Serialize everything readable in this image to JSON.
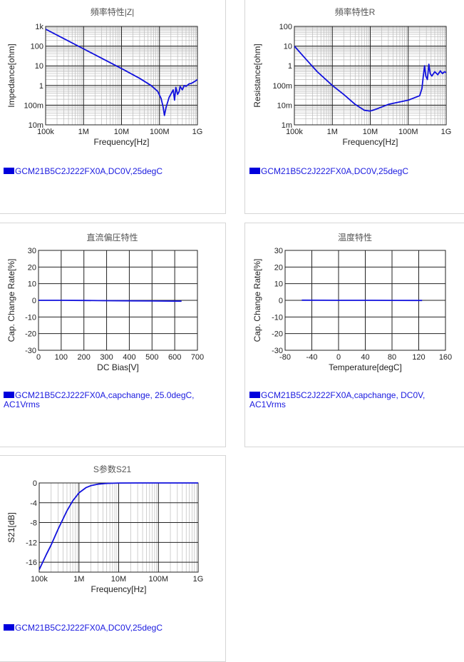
{
  "colors": {
    "series": "#1111dd",
    "grid_major": "#222222",
    "grid_minor": "#bbbbbb",
    "legend_text": "#1a1adf"
  },
  "panels": [
    {
      "title": "頻率特性|Z|",
      "legend": "GCM21B5C2J222FX0A,DC0V,25degC"
    },
    {
      "title": "頻率特性R",
      "legend": "GCM21B5C2J222FX0A,DC0V,25degC"
    },
    {
      "title": "直流偏圧特性",
      "legend": "GCM21B5C2J222FX0A,capchange, 25.0degC, AC1Vrms"
    },
    {
      "title": "温度特性",
      "legend": "GCM21B5C2J222FX0A,capchange, DC0V, AC1Vrms"
    },
    {
      "title": "S参数S21",
      "legend": "GCM21B5C2J222FX0A,DC0V,25degC"
    }
  ],
  "chart_data": [
    {
      "type": "line",
      "title": "頻率特性|Z|",
      "xlabel": "Frequency[Hz]",
      "ylabel": "Impedance[ohm]",
      "xscale": "log",
      "yscale": "log",
      "xlim": [
        100000,
        1000000000
      ],
      "ylim": [
        0.01,
        1000
      ],
      "xticks": [
        {
          "v": 100000,
          "label": "100k"
        },
        {
          "v": 1000000,
          "label": "1M"
        },
        {
          "v": 10000000,
          "label": "10M"
        },
        {
          "v": 100000000,
          "label": "100M"
        },
        {
          "v": 1000000000,
          "label": "1G"
        }
      ],
      "yticks": [
        {
          "v": 0.01,
          "label": "10m"
        },
        {
          "v": 0.1,
          "label": "100m"
        },
        {
          "v": 1,
          "label": "1"
        },
        {
          "v": 10,
          "label": "10"
        },
        {
          "v": 100,
          "label": "100"
        },
        {
          "v": 1000,
          "label": "1k"
        }
      ],
      "grid": true,
      "series": [
        {
          "name": "GCM21B5C2J222FX0A,DC0V,25degC",
          "x": [
            100000,
            300000,
            1000000,
            3000000,
            10000000,
            30000000,
            60000000,
            90000000,
            110000000,
            125000000,
            135000000,
            150000000,
            180000000,
            230000000,
            250000000,
            270000000,
            300000000,
            330000000,
            350000000,
            400000000,
            450000000,
            500000000,
            600000000,
            700000000,
            850000000,
            1000000000
          ],
          "y": [
            720,
            240,
            72,
            24,
            7.2,
            2.3,
            1.0,
            0.5,
            0.22,
            0.08,
            0.03,
            0.08,
            0.25,
            0.6,
            0.18,
            0.8,
            0.35,
            0.5,
            0.9,
            0.6,
            1.0,
            0.9,
            1.2,
            1.3,
            1.6,
            2.0
          ]
        }
      ]
    },
    {
      "type": "line",
      "title": "頻率特性R",
      "xlabel": "Frequency[Hz]",
      "ylabel": "Resistance[ohm]",
      "xscale": "log",
      "yscale": "log",
      "xlim": [
        100000,
        1000000000
      ],
      "ylim": [
        0.001,
        100
      ],
      "xticks": [
        {
          "v": 100000,
          "label": "100k"
        },
        {
          "v": 1000000,
          "label": "1M"
        },
        {
          "v": 10000000,
          "label": "10M"
        },
        {
          "v": 100000000,
          "label": "100M"
        },
        {
          "v": 1000000000,
          "label": "1G"
        }
      ],
      "yticks": [
        {
          "v": 0.001,
          "label": "1m"
        },
        {
          "v": 0.01,
          "label": "10m"
        },
        {
          "v": 0.1,
          "label": "100m"
        },
        {
          "v": 1,
          "label": "1"
        },
        {
          "v": 10,
          "label": "10"
        },
        {
          "v": 100,
          "label": "100"
        }
      ],
      "grid": true,
      "series": [
        {
          "name": "GCM21B5C2J222FX0A,DC0V,25degC",
          "x": [
            100000,
            200000,
            400000,
            1000000,
            2000000,
            4000000,
            7000000,
            10000000,
            15000000,
            30000000,
            100000000,
            200000000,
            230000000,
            250000000,
            270000000,
            290000000,
            320000000,
            350000000,
            380000000,
            420000000,
            500000000,
            600000000,
            700000000,
            800000000,
            900000000,
            1000000000
          ],
          "y": [
            10,
            2.2,
            0.5,
            0.1,
            0.035,
            0.011,
            0.0055,
            0.005,
            0.0065,
            0.011,
            0.018,
            0.03,
            0.07,
            0.3,
            1.0,
            0.3,
            0.2,
            1.2,
            0.4,
            0.3,
            0.5,
            0.35,
            0.55,
            0.4,
            0.5,
            0.45
          ]
        }
      ]
    },
    {
      "type": "line",
      "title": "直流偏圧特性",
      "xlabel": "DC Bias[V]",
      "ylabel": "Cap. Change Rate[%]",
      "xlim": [
        0,
        700
      ],
      "ylim": [
        -30,
        30
      ],
      "xticks": [
        {
          "v": 0,
          "label": "0"
        },
        {
          "v": 100,
          "label": "100"
        },
        {
          "v": 200,
          "label": "200"
        },
        {
          "v": 300,
          "label": "300"
        },
        {
          "v": 400,
          "label": "400"
        },
        {
          "v": 500,
          "label": "500"
        },
        {
          "v": 600,
          "label": "600"
        },
        {
          "v": 700,
          "label": "700"
        }
      ],
      "yticks": [
        {
          "v": -30,
          "label": "-30"
        },
        {
          "v": -20,
          "label": "-20"
        },
        {
          "v": -10,
          "label": "-10"
        },
        {
          "v": 0,
          "label": "0"
        },
        {
          "v": 10,
          "label": "10"
        },
        {
          "v": 20,
          "label": "20"
        },
        {
          "v": 30,
          "label": "30"
        }
      ],
      "grid": true,
      "series": [
        {
          "name": "GCM21B5C2J222FX0A,capchange, 25.0degC, AC1Vrms",
          "x": [
            0,
            100,
            200,
            300,
            400,
            500,
            630
          ],
          "y": [
            0,
            0,
            -0.1,
            -0.2,
            -0.3,
            -0.4,
            -0.5
          ]
        }
      ]
    },
    {
      "type": "line",
      "title": "温度特性",
      "xlabel": "Temperature[degC]",
      "ylabel": "Cap. Change Rate[%]",
      "xlim": [
        -80,
        160
      ],
      "ylim": [
        -30,
        30
      ],
      "xticks": [
        {
          "v": -80,
          "label": "-80"
        },
        {
          "v": -40,
          "label": "-40"
        },
        {
          "v": 0,
          "label": "0"
        },
        {
          "v": 40,
          "label": "40"
        },
        {
          "v": 80,
          "label": "80"
        },
        {
          "v": 120,
          "label": "120"
        },
        {
          "v": 160,
          "label": "160"
        }
      ],
      "yticks": [
        {
          "v": -30,
          "label": "-30"
        },
        {
          "v": -20,
          "label": "-20"
        },
        {
          "v": -10,
          "label": "-10"
        },
        {
          "v": 0,
          "label": "0"
        },
        {
          "v": 10,
          "label": "10"
        },
        {
          "v": 20,
          "label": "20"
        },
        {
          "v": 30,
          "label": "30"
        }
      ],
      "grid": true,
      "series": [
        {
          "name": "GCM21B5C2J222FX0A,capchange, DC0V, AC1Vrms",
          "x": [
            -55,
            -25,
            0,
            25,
            50,
            85,
            125
          ],
          "y": [
            0.1,
            0.05,
            0.02,
            0,
            -0.02,
            -0.05,
            -0.1
          ]
        }
      ]
    },
    {
      "type": "line",
      "title": "S参数S21",
      "xlabel": "Frequency[Hz]",
      "ylabel": "S21[dB]",
      "xscale": "log",
      "xlim": [
        100000,
        1000000000
      ],
      "ylim": [
        -18,
        0
      ],
      "xticks": [
        {
          "v": 100000,
          "label": "100k"
        },
        {
          "v": 1000000,
          "label": "1M"
        },
        {
          "v": 10000000,
          "label": "10M"
        },
        {
          "v": 100000000,
          "label": "100M"
        },
        {
          "v": 1000000000,
          "label": "1G"
        }
      ],
      "yticks": [
        {
          "v": -18,
          "label": ""
        },
        {
          "v": -16,
          "label": "-16"
        },
        {
          "v": -12,
          "label": "-12"
        },
        {
          "v": -8,
          "label": "-8"
        },
        {
          "v": -4,
          "label": "-4"
        },
        {
          "v": 0,
          "label": "0"
        }
      ],
      "grid": true,
      "series": [
        {
          "name": "GCM21B5C2J222FX0A,DC0V,25degC",
          "x": [
            100000,
            150000,
            200000,
            300000,
            500000,
            700000,
            1000000,
            1500000,
            2000000,
            3000000,
            5000000,
            10000000,
            30000000,
            100000000,
            1000000000
          ],
          "y": [
            -17.5,
            -14.5,
            -12.5,
            -9.3,
            -5.6,
            -3.6,
            -2.0,
            -0.95,
            -0.55,
            -0.25,
            -0.09,
            -0.02,
            0,
            0,
            0
          ]
        }
      ]
    }
  ]
}
